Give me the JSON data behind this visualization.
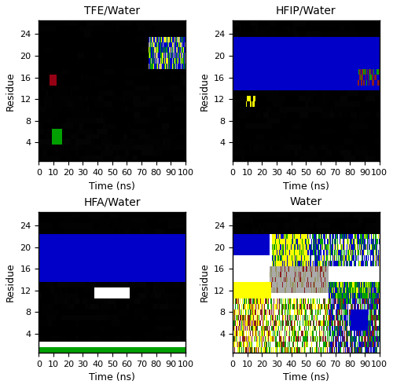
{
  "titles": [
    "TFE/Water",
    "HFIP/Water",
    "HFA/Water",
    "Water"
  ],
  "n_residues": 26,
  "n_frames": 200,
  "time_start": 0,
  "time_end": 100,
  "residue_start": 1,
  "residue_end": 26,
  "xticks": [
    0,
    10,
    20,
    30,
    40,
    50,
    60,
    70,
    80,
    90,
    100
  ],
  "yticks": [
    4,
    8,
    12,
    16,
    20,
    24
  ],
  "xlabel": "Time (ns)",
  "ylabel": "Residue",
  "figsize": [
    5.0,
    4.94
  ],
  "dpi": 100,
  "title_fontsize": 10,
  "label_fontsize": 9,
  "tick_fontsize": 8
}
